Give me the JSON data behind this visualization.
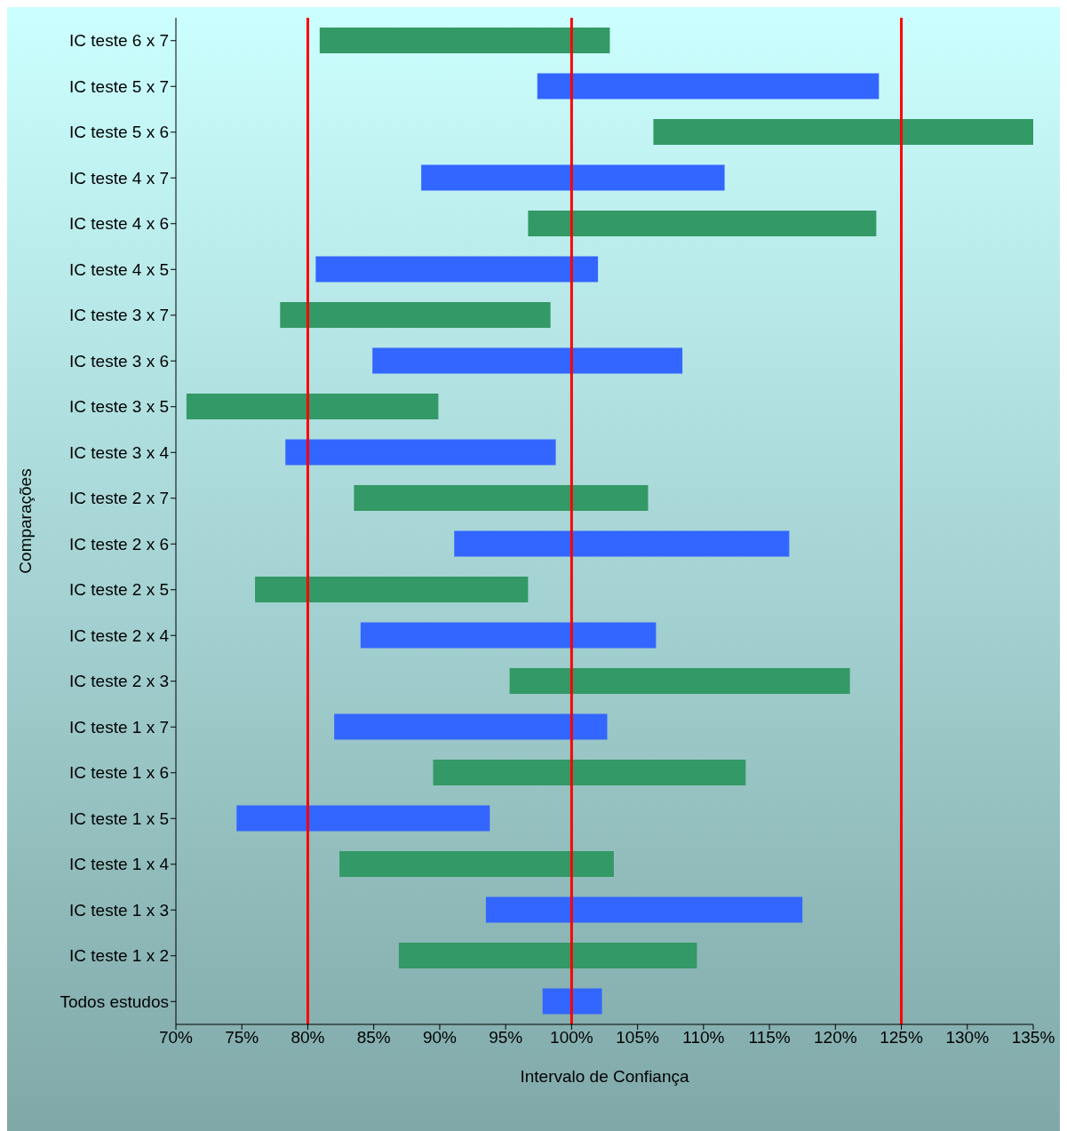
{
  "chart_data": {
    "type": "bar",
    "orientation": "horizontal",
    "xlabel": "Intervalo de Confiança",
    "ylabel": "Comparações",
    "categories": [
      "IC teste 6 x 7",
      "IC teste 5 x 7",
      "IC teste 5 x 6",
      "IC teste 4 x 7",
      "IC teste 4 x 6",
      "IC teste 4 x 5",
      "IC teste 3 x 7",
      "IC teste 3 x 6",
      "IC teste 3 x 5",
      "IC teste 3 x 4",
      "IC teste 2 x 7",
      "IC teste 2 x 6",
      "IC teste 2 x 5",
      "IC teste 2 x 4",
      "IC teste 2 x 3",
      "IC teste 1 x 7",
      "IC teste 1 x 6",
      "IC teste 1 x 5",
      "IC teste 1 x 4",
      "IC teste 1 x 3",
      "IC teste 1 x 2",
      "Todos estudos"
    ],
    "base": [
      80.9,
      97.4,
      106.2,
      88.6,
      96.7,
      80.6,
      77.9,
      84.9,
      70.8,
      78.3,
      83.5,
      91.1,
      76.0,
      84.0,
      95.3,
      82.0,
      89.5,
      74.6,
      82.4,
      93.5,
      86.9,
      97.8
    ],
    "values": [
      22.0,
      25.9,
      28.8,
      23.0,
      26.4,
      21.4,
      20.5,
      23.5,
      19.1,
      20.5,
      22.3,
      25.4,
      20.7,
      22.4,
      25.8,
      20.7,
      23.7,
      19.2,
      20.8,
      24.0,
      22.6,
      4.5
    ],
    "colors": [
      "#339966",
      "#3366ff",
      "#339966",
      "#3366ff",
      "#339966",
      "#3366ff",
      "#339966",
      "#3366ff",
      "#339966",
      "#3366ff",
      "#339966",
      "#3366ff",
      "#339966",
      "#3366ff",
      "#339966",
      "#3366ff",
      "#339966",
      "#3366ff",
      "#339966",
      "#3366ff",
      "#339966",
      "#3366ff"
    ],
    "xlim": [
      70,
      135
    ],
    "xticks": [
      {
        "value": 70,
        "label": "70%"
      },
      {
        "value": 75,
        "label": "75%"
      },
      {
        "value": 80,
        "label": "80%"
      },
      {
        "value": 85,
        "label": "85%"
      },
      {
        "value": 90,
        "label": "90%"
      },
      {
        "value": 95,
        "label": "95%"
      },
      {
        "value": 100,
        "label": "100%"
      },
      {
        "value": 105,
        "label": "105%"
      },
      {
        "value": 110,
        "label": "110%"
      },
      {
        "value": 115,
        "label": "115%"
      },
      {
        "value": 120,
        "label": "120%"
      },
      {
        "value": 125,
        "label": "125%"
      },
      {
        "value": 130,
        "label": "130%"
      },
      {
        "value": 135,
        "label": "135%"
      }
    ],
    "ref_lines": [
      {
        "axis": "x",
        "value": 80,
        "color": "#ff0000"
      },
      {
        "axis": "x",
        "value": 100,
        "color": "#ff0000"
      },
      {
        "axis": "x",
        "value": 125,
        "color": "#ff0000"
      }
    ],
    "grid": false,
    "legend": false
  }
}
